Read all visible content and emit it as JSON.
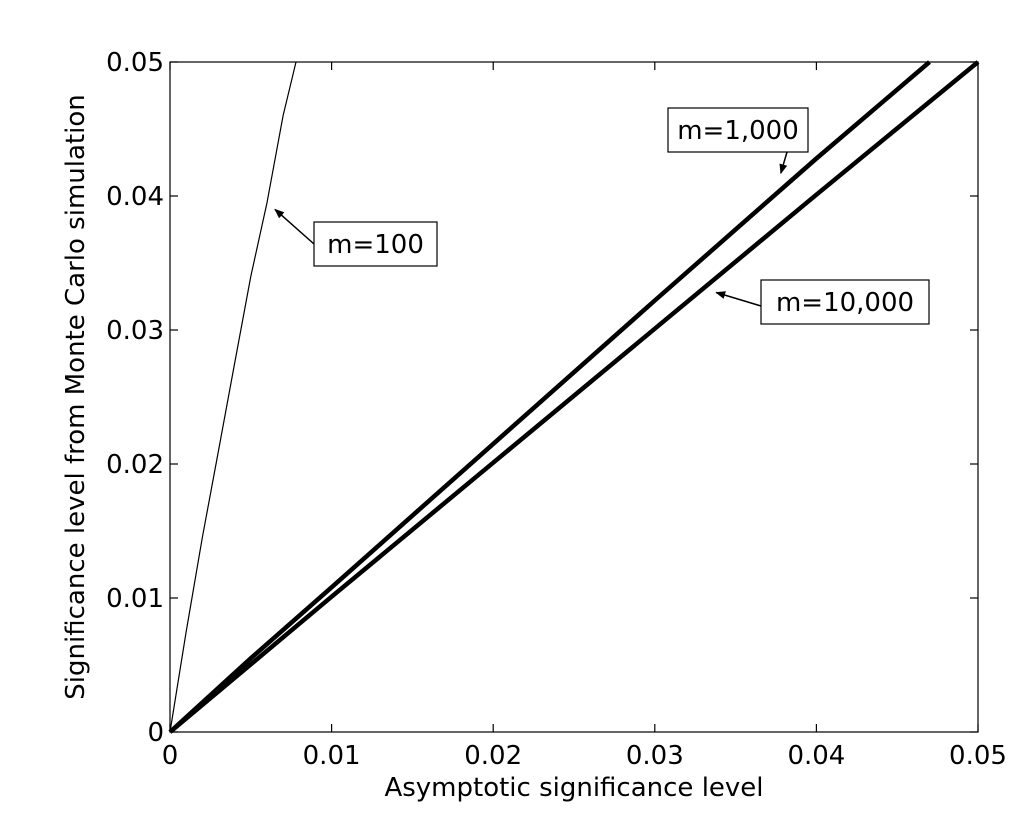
{
  "chart_data": {
    "type": "line",
    "title": "",
    "xlabel": "Asymptotic significance level",
    "ylabel": "Significance level from Monte Carlo simulation",
    "xlim": [
      0,
      0.05
    ],
    "ylim": [
      0,
      0.05
    ],
    "grid": false,
    "legend": "none",
    "x_ticks": [
      0,
      0.01,
      0.02,
      0.03,
      0.04,
      0.05
    ],
    "x_tick_labels": [
      "0",
      "0.01",
      "0.02",
      "0.03",
      "0.04",
      "0.05"
    ],
    "y_ticks": [
      0,
      0.01,
      0.02,
      0.03,
      0.04,
      0.05
    ],
    "y_tick_labels": [
      "0",
      "0.01",
      "0.02",
      "0.03",
      "0.04",
      "0.05"
    ],
    "series": [
      {
        "id": "m100",
        "x": [
          0,
          0.001,
          0.002,
          0.003,
          0.004,
          0.005,
          0.006,
          0.007,
          0.0078
        ],
        "y": [
          0,
          0.0075,
          0.0145,
          0.021,
          0.0275,
          0.034,
          0.0395,
          0.046,
          0.05
        ],
        "color": "#000000",
        "line_weight": "thin"
      },
      {
        "id": "m1000",
        "x": [
          0,
          0.005,
          0.01,
          0.02,
          0.03,
          0.04,
          0.047
        ],
        "y": [
          0,
          0.0055,
          0.0108,
          0.0215,
          0.0322,
          0.0428,
          0.05
        ],
        "color": "#000000",
        "line_weight": "thick"
      },
      {
        "id": "m10000",
        "x": [
          0,
          0.01,
          0.02,
          0.03,
          0.04,
          0.05
        ],
        "y": [
          0,
          0.0101,
          0.0201,
          0.0301,
          0.0401,
          0.05
        ],
        "color": "#000000",
        "line_weight": "thick"
      }
    ],
    "annotations": [
      {
        "text": "m=100",
        "arrow_to": [
          0.0065,
          0.039
        ]
      },
      {
        "text": "m=1,000",
        "arrow_to": [
          0.0378,
          0.0417
        ]
      },
      {
        "text": "m=10,000",
        "arrow_to": [
          0.0338,
          0.0328
        ]
      }
    ]
  }
}
